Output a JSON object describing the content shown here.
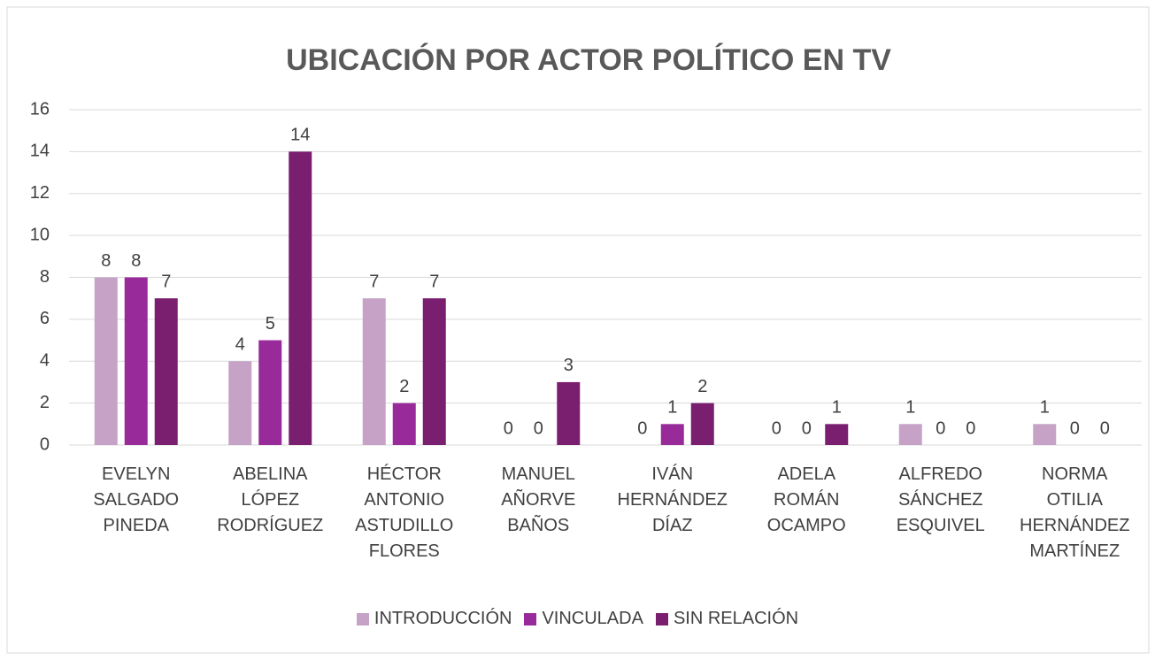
{
  "chart_data": {
    "type": "bar",
    "title": "UBICACIÓN POR ACTOR POLÍTICO EN TV",
    "categories": [
      "EVELYN SALGADO PINEDA",
      "ABELINA LÓPEZ RODRÍGUEZ",
      "HÉCTOR ANTONIO ASTUDILLO FLORES",
      "MANUEL AÑORVE BAÑOS",
      "IVÁN HERNÁNDEZ DÍAZ",
      "ADELA ROMÁN OCAMPO",
      "ALFREDO SÁNCHEZ ESQUIVEL",
      "NORMA OTILIA HERNÁNDEZ MARTÍNEZ"
    ],
    "series": [
      {
        "name": "INTRODUCCIÓN",
        "color": "#c5a2c6",
        "values": [
          8,
          4,
          7,
          0,
          0,
          0,
          1,
          1
        ]
      },
      {
        "name": "VINCULADA",
        "color": "#982a9a",
        "values": [
          8,
          5,
          2,
          0,
          1,
          0,
          0,
          0
        ]
      },
      {
        "name": "SIN RELACIÓN",
        "color": "#7a1e70",
        "values": [
          7,
          14,
          7,
          3,
          2,
          1,
          0,
          0
        ]
      }
    ],
    "ylim": [
      0,
      16
    ],
    "yticks": [
      0,
      2,
      4,
      6,
      8,
      10,
      12,
      14,
      16
    ],
    "grid": true,
    "legend": "bottom"
  }
}
